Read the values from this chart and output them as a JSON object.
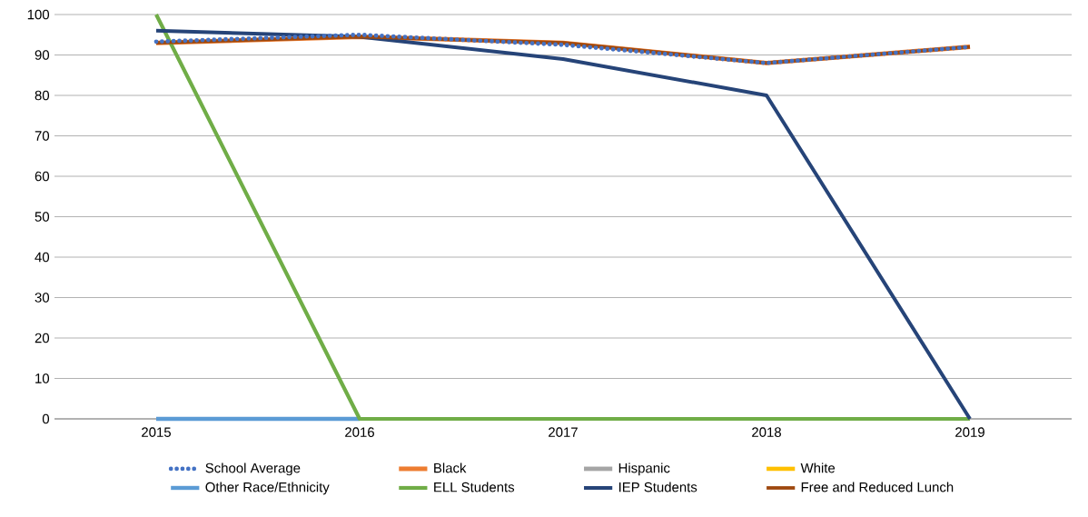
{
  "chart_data": {
    "type": "line",
    "categories": [
      "2015",
      "2016",
      "2017",
      "2018",
      "2019"
    ],
    "series": [
      {
        "name": "School Average",
        "color": "#4472c4",
        "line_style": "dotted",
        "values": [
          93.3,
          95,
          92.5,
          88,
          92
        ]
      },
      {
        "name": "Black",
        "color": "#ed7d31",
        "values": [
          93,
          94.5,
          93,
          88,
          92
        ]
      },
      {
        "name": "Hispanic",
        "color": "#a5a5a5",
        "values": [
          null,
          null,
          null,
          null,
          null
        ]
      },
      {
        "name": "White",
        "color": "#ffc000",
        "values": [
          null,
          null,
          null,
          null,
          null
        ]
      },
      {
        "name": "Other Race/Ethnicity",
        "color": "#5b9bd5",
        "values": [
          0,
          0,
          null,
          null,
          null
        ]
      },
      {
        "name": "ELL Students",
        "color": "#70ad47",
        "values": [
          100,
          0,
          0,
          0,
          0
        ]
      },
      {
        "name": "IEP Students",
        "color": "#264478",
        "values": [
          96,
          94.5,
          89,
          80,
          0
        ]
      },
      {
        "name": "Free and Reduced Lunch",
        "color": "#9e480e",
        "values": [
          93,
          94.5,
          93,
          88,
          92
        ]
      }
    ],
    "ylim": [
      0,
      100
    ],
    "yticks": [
      0,
      10,
      20,
      30,
      40,
      50,
      60,
      70,
      80,
      90,
      100
    ],
    "grid": "y",
    "legend": "bottom",
    "marker": "none",
    "line_style": "solid"
  }
}
